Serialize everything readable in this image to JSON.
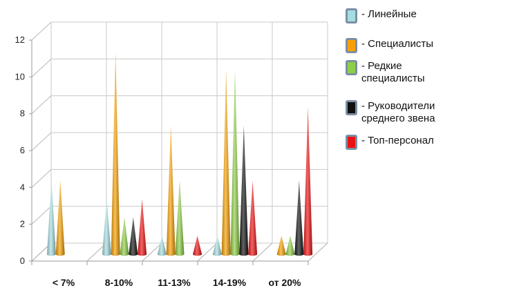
{
  "chart_data": {
    "type": "bar",
    "style": "3d-cone",
    "categories": [
      "< 7%",
      "8-10%",
      "11-13%",
      "14-19%",
      "от 20%"
    ],
    "series": [
      {
        "name": "- Линейные",
        "color": "#a6dde0",
        "values": [
          4,
          3,
          1,
          1,
          0
        ]
      },
      {
        "name": "- Специалисты",
        "color": "#f7a000",
        "values": [
          4,
          11,
          7,
          10,
          1
        ]
      },
      {
        "name": "- Редкие\nспециалисты",
        "color": "#8fce47",
        "values": [
          0,
          2,
          4,
          10,
          1
        ]
      },
      {
        "name": "- Руководители\n  среднего звена",
        "color": "#101010",
        "values": [
          0,
          2,
          0,
          7,
          4
        ]
      },
      {
        "name": "- Топ-персонал",
        "color": "#ee1111",
        "values": [
          0,
          3,
          1,
          4,
          8
        ]
      }
    ],
    "y_ticks": [
      "0",
      "2",
      "4",
      "6",
      "8",
      "10",
      "12"
    ],
    "ylim": [
      0,
      12
    ],
    "grid": true,
    "legend_position": "right"
  }
}
